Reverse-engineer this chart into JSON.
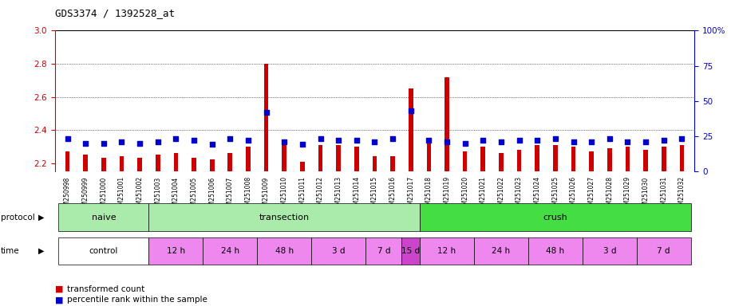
{
  "title": "GDS3374 / 1392528_at",
  "samples": [
    "GSM250998",
    "GSM250999",
    "GSM251000",
    "GSM251001",
    "GSM251002",
    "GSM251003",
    "GSM251004",
    "GSM251005",
    "GSM251006",
    "GSM251007",
    "GSM251008",
    "GSM251009",
    "GSM251010",
    "GSM251011",
    "GSM251012",
    "GSM251013",
    "GSM251014",
    "GSM251015",
    "GSM251016",
    "GSM251017",
    "GSM251018",
    "GSM251019",
    "GSM251020",
    "GSM251021",
    "GSM251022",
    "GSM251023",
    "GSM251024",
    "GSM251025",
    "GSM251026",
    "GSM251027",
    "GSM251028",
    "GSM251029",
    "GSM251030",
    "GSM251031",
    "GSM251032"
  ],
  "transformed_count": [
    2.27,
    2.25,
    2.23,
    2.24,
    2.23,
    2.25,
    2.26,
    2.23,
    2.22,
    2.26,
    2.3,
    2.8,
    2.32,
    2.21,
    2.31,
    2.31,
    2.3,
    2.24,
    2.24,
    2.65,
    2.33,
    2.72,
    2.27,
    2.3,
    2.26,
    2.28,
    2.31,
    2.31,
    2.3,
    2.27,
    2.29,
    2.3,
    2.28,
    2.3,
    2.31
  ],
  "percentile_rank": [
    23,
    20,
    20,
    21,
    20,
    21,
    23,
    22,
    19,
    23,
    22,
    42,
    21,
    19,
    23,
    22,
    22,
    21,
    23,
    43,
    22,
    21,
    20,
    22,
    21,
    22,
    22,
    23,
    21,
    21,
    23,
    21,
    21,
    22,
    23
  ],
  "ylim_left": [
    2.15,
    3.0
  ],
  "ylim_right": [
    0,
    100
  ],
  "yticks_left": [
    2.2,
    2.4,
    2.6,
    2.8,
    3.0
  ],
  "yticks_right": [
    0,
    25,
    50,
    75,
    100
  ],
  "bar_color": "#cc0000",
  "dot_color": "#0000cc",
  "background_color": "#ffffff",
  "left_axis_color": "#cc0000",
  "right_axis_color": "#0000cc",
  "protocol_groups": [
    {
      "label": "naive",
      "start": 0,
      "end": 5,
      "color": "#aaeaaa"
    },
    {
      "label": "transection",
      "start": 5,
      "end": 20,
      "color": "#aaeaaa"
    },
    {
      "label": "crush",
      "start": 20,
      "end": 35,
      "color": "#44dd44"
    }
  ],
  "time_groups": [
    {
      "label": "control",
      "start": 0,
      "end": 5,
      "color": "#ffffff"
    },
    {
      "label": "12 h",
      "start": 5,
      "end": 8,
      "color": "#ee88ee"
    },
    {
      "label": "24 h",
      "start": 8,
      "end": 11,
      "color": "#ee88ee"
    },
    {
      "label": "48 h",
      "start": 11,
      "end": 14,
      "color": "#ee88ee"
    },
    {
      "label": "3 d",
      "start": 14,
      "end": 17,
      "color": "#ee88ee"
    },
    {
      "label": "7 d",
      "start": 17,
      "end": 19,
      "color": "#ee88ee"
    },
    {
      "label": "15 d",
      "start": 19,
      "end": 20,
      "color": "#cc44cc"
    },
    {
      "label": "12 h",
      "start": 20,
      "end": 23,
      "color": "#ee88ee"
    },
    {
      "label": "24 h",
      "start": 23,
      "end": 26,
      "color": "#ee88ee"
    },
    {
      "label": "48 h",
      "start": 26,
      "end": 29,
      "color": "#ee88ee"
    },
    {
      "label": "3 d",
      "start": 29,
      "end": 32,
      "color": "#ee88ee"
    },
    {
      "label": "7 d",
      "start": 32,
      "end": 35,
      "color": "#ee88ee"
    }
  ]
}
